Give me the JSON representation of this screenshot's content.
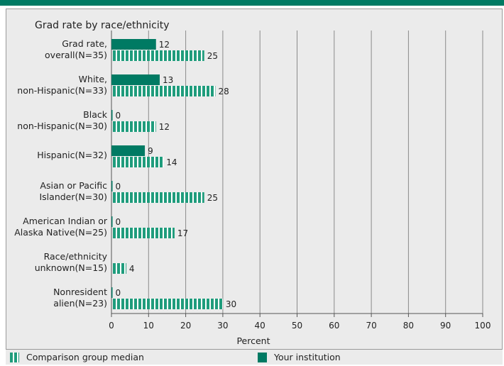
{
  "colors": {
    "institution": "#007a63",
    "comparison": "#1f9c7c",
    "band": "#007a63"
  },
  "legend": {
    "comparison_label": "Comparison group median",
    "institution_label": "Your institution"
  },
  "chart_data": {
    "type": "bar",
    "orientation": "horizontal",
    "title": "Grad rate by race/ethnicity",
    "xlabel": "Percent",
    "xlim": [
      0,
      100
    ],
    "xticks": [
      0,
      10,
      20,
      30,
      40,
      50,
      60,
      70,
      80,
      90,
      100
    ],
    "grid": true,
    "legend_position": "bottom",
    "categories": [
      [
        "Grad rate,",
        "overall(N=35)"
      ],
      [
        "White,",
        "non-Hispanic(N=33)"
      ],
      [
        "Black",
        "non-Hispanic(N=30)"
      ],
      [
        "Hispanic(N=32)"
      ],
      [
        "Asian or Pacific",
        "Islander(N=30)"
      ],
      [
        "American Indian or",
        "Alaska Native(N=25)"
      ],
      [
        "Race/ethnicity",
        "unknown(N=15)"
      ],
      [
        "Nonresident",
        "alien(N=23)"
      ]
    ],
    "series": [
      {
        "name": "Your institution",
        "values": [
          12,
          13,
          0,
          9,
          0,
          0,
          null,
          0
        ]
      },
      {
        "name": "Comparison group median",
        "values": [
          25,
          28,
          12,
          14,
          25,
          17,
          4,
          30
        ]
      }
    ]
  }
}
